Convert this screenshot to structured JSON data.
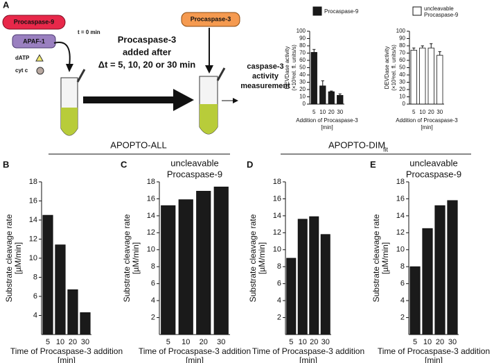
{
  "diagram": {
    "panel": "A",
    "procaspase9": "Procaspase-9",
    "apaf1": "APAF-1",
    "datp": "dATP",
    "cytc": "cyt c",
    "t0": "t = 0 min",
    "added": [
      "Procaspase-3",
      "added after",
      "Δt = 5, 10, 20 or 30 min"
    ],
    "procaspase3": "Procaspase-3",
    "measurement": [
      "caspase-3",
      "activity",
      "measurement"
    ]
  },
  "groups": [
    {
      "label": "APOPTO-ALL"
    },
    {
      "label": "APOPTO-DIM",
      "subscript": "fit"
    }
  ],
  "chart_data": [
    {
      "type": "bar",
      "categories": [
        "5",
        "10",
        "20",
        "30"
      ],
      "series": [
        {
          "name": "Procaspase-9",
          "color": "#1a1a1a",
          "values": [
            71,
            25,
            17,
            12
          ],
          "errors": [
            4,
            7,
            1,
            2
          ]
        }
      ],
      "ylim": [
        0,
        100
      ],
      "yticks": [
        0,
        10,
        20,
        30,
        40,
        50,
        60,
        70,
        80,
        90,
        100
      ],
      "ylabel": [
        "DEVDase activity",
        "(×10³rel. fl. units/s)"
      ],
      "xlabel": [
        "Addition of Procaspase-3",
        "[min]"
      ]
    },
    {
      "type": "bar",
      "categories": [
        "5",
        "10",
        "20",
        "30"
      ],
      "series": [
        {
          "name": "uncleavable Procaspase-9",
          "color": "#ffffff",
          "values": [
            74,
            77,
            77,
            67
          ],
          "errors": [
            3,
            3,
            6,
            5
          ]
        }
      ],
      "ylim": [
        0,
        100
      ],
      "yticks": [
        0,
        10,
        20,
        30,
        40,
        50,
        60,
        70,
        80,
        90,
        100
      ],
      "ylabel": [
        "DEVDase activity",
        "(×10³rel. fl. units/s)"
      ],
      "xlabel": [
        "Addition of Procaspase-3",
        "[min]"
      ]
    },
    {
      "type": "bar",
      "panel": "B",
      "categories": [
        "5",
        "10",
        "20",
        "30"
      ],
      "values": [
        14.5,
        11.4,
        6.7,
        4.3
      ],
      "color": "#1a1a1a",
      "ylim": [
        2,
        18
      ],
      "yticks": [
        4,
        6,
        8,
        10,
        12,
        14,
        16,
        18
      ],
      "ylabel": [
        "Substrate cleavage rate",
        "[µM/min]"
      ],
      "xlabel": [
        "Time of Procaspase-3 addition",
        "[min]"
      ]
    },
    {
      "type": "bar",
      "panel": "C",
      "title": [
        "uncleavable",
        "Procaspase-9"
      ],
      "categories": [
        "5",
        "10",
        "20",
        "30"
      ],
      "values": [
        15.2,
        15.9,
        16.9,
        17.4
      ],
      "color": "#1a1a1a",
      "ylim": [
        0,
        18
      ],
      "yticks": [
        2,
        4,
        6,
        8,
        10,
        12,
        14,
        16,
        18
      ],
      "ylabel": [
        "Substrate cleavage rate",
        "[µM/min]"
      ],
      "xlabel": [
        "Time of Procaspase-3 addition",
        "[min]"
      ]
    },
    {
      "type": "bar",
      "panel": "D",
      "categories": [
        "5",
        "10",
        "20",
        "30"
      ],
      "values": [
        9.0,
        13.6,
        13.9,
        11.8
      ],
      "color": "#1a1a1a",
      "ylim": [
        0,
        18
      ],
      "yticks": [
        2,
        4,
        6,
        8,
        10,
        12,
        14,
        16,
        18
      ],
      "ylabel": [
        "Substrate cleavage rate",
        "[µM/min]"
      ],
      "xlabel": [
        "Time of Procaspase-3 addition",
        "[min]"
      ]
    },
    {
      "type": "bar",
      "panel": "E",
      "title": [
        "uncleavable",
        "Procaspase-9"
      ],
      "categories": [
        "5",
        "10",
        "20",
        "30"
      ],
      "values": [
        8.0,
        12.5,
        15.2,
        15.8
      ],
      "color": "#1a1a1a",
      "ylim": [
        0,
        18
      ],
      "yticks": [
        2,
        4,
        6,
        8,
        10,
        12,
        14,
        16,
        18
      ],
      "ylabel": [
        "Substrate cleavage rate",
        "[µM/min]"
      ],
      "xlabel": [
        "Time of Procaspase-3 addition",
        "[min]"
      ]
    }
  ]
}
